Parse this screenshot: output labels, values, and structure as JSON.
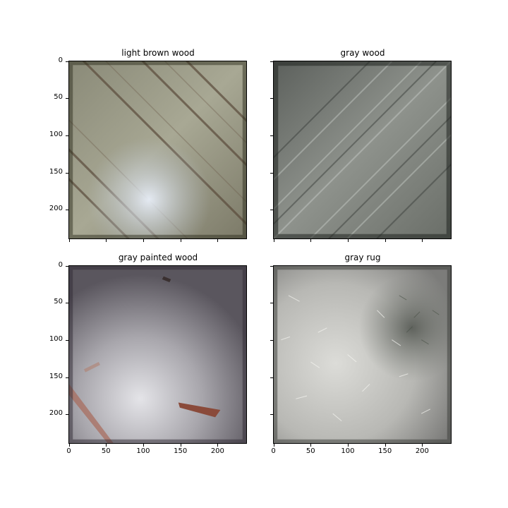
{
  "panels": [
    {
      "title": "light brown wood",
      "show_y_labels": true,
      "show_x_labels": false,
      "image": "light-brown-wood-texture-photo"
    },
    {
      "title": "gray wood",
      "show_y_labels": false,
      "show_x_labels": false,
      "image": "gray-wood-texture-photo"
    },
    {
      "title": "gray painted wood",
      "show_y_labels": true,
      "show_x_labels": true,
      "image": "gray-painted-wood-texture-photo"
    },
    {
      "title": "gray rug",
      "show_y_labels": false,
      "show_x_labels": true,
      "image": "gray-rug-texture-photo"
    }
  ],
  "y_ticks": [
    "0",
    "50",
    "100",
    "150",
    "200"
  ],
  "x_ticks": [
    "0",
    "50",
    "100",
    "150",
    "200"
  ],
  "axis_range": [
    0,
    240
  ]
}
